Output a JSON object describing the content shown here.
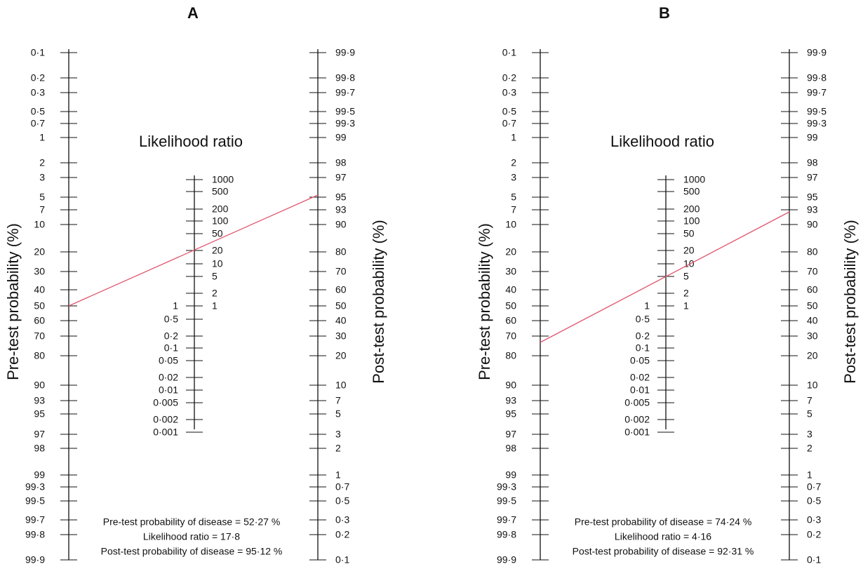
{
  "panels": [
    {
      "label": "A",
      "left_axis": {
        "title": "Pre-test probability (%)",
        "ticks": [
          "0·1",
          "0·2",
          "0·3",
          "0·5",
          "0·7",
          "1",
          "2",
          "3",
          "5",
          "7",
          "10",
          "20",
          "30",
          "40",
          "50",
          "60",
          "70",
          "80",
          "90",
          "93",
          "95",
          "97",
          "98",
          "99",
          "99·3",
          "99·5",
          "99·7",
          "99·8",
          "99·9"
        ]
      },
      "likelihood_axis": {
        "title": "Likelihood ratio",
        "upper_ticks": [
          "1000",
          "500",
          "200",
          "100",
          "50",
          "20",
          "10",
          "5",
          "2",
          "1"
        ],
        "lower_ticks": [
          "1",
          "0·5",
          "0·2",
          "0·1",
          "0·05",
          "0·02",
          "0·01",
          "0·005",
          "0·002",
          "0·001"
        ]
      },
      "right_axis": {
        "title": "Post-test probability (%)",
        "ticks": [
          "99·9",
          "99·8",
          "99·7",
          "99·5",
          "99·3",
          "99",
          "98",
          "97",
          "95",
          "93",
          "90",
          "80",
          "70",
          "60",
          "50",
          "40",
          "30",
          "20",
          "10",
          "7",
          "5",
          "3",
          "2",
          "1",
          "0·7",
          "0·5",
          "0·3",
          "0·2",
          "0·1"
        ]
      },
      "results": [
        "Pre-test probability of disease = 52·27 %",
        "Likelihood ratio  = 17·8",
        "Post-test probability of disease = 95·12 %"
      ]
    },
    {
      "label": "B",
      "left_axis": {
        "title": "Pre-test probability (%)",
        "ticks": [
          "0·1",
          "0·2",
          "0·3",
          "0·5",
          "0·7",
          "1",
          "2",
          "3",
          "5",
          "7",
          "10",
          "20",
          "30",
          "40",
          "50",
          "60",
          "70",
          "80",
          "90",
          "93",
          "95",
          "97",
          "98",
          "99",
          "99·3",
          "99·5",
          "99·7",
          "99·8",
          "99·9"
        ]
      },
      "likelihood_axis": {
        "title": "Likelihood ratio",
        "upper_ticks": [
          "1000",
          "500",
          "200",
          "100",
          "50",
          "20",
          "10",
          "5",
          "2",
          "1"
        ],
        "lower_ticks": [
          "1",
          "0·5",
          "0·2",
          "0·1",
          "0·05",
          "0·02",
          "0·01",
          "0·005",
          "0·002",
          "0·001"
        ]
      },
      "right_axis": {
        "title": "Post-test probability (%)",
        "ticks": [
          "99·9",
          "99·8",
          "99·7",
          "99·5",
          "99·3",
          "99",
          "98",
          "97",
          "95",
          "93",
          "90",
          "80",
          "70",
          "60",
          "50",
          "40",
          "30",
          "20",
          "10",
          "7",
          "5",
          "3",
          "2",
          "1",
          "0·7",
          "0·5",
          "0·3",
          "0·2",
          "0·1"
        ]
      },
      "results": [
        "Pre-test probability of disease = 74·24 %",
        "Likelihood ratio  = 4·16",
        "Post-test probability of disease = 92·31 %"
      ]
    }
  ]
}
